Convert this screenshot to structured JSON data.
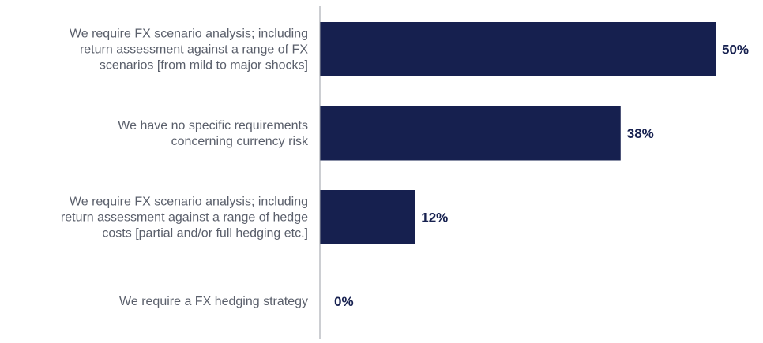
{
  "chart_data": {
    "type": "bar",
    "orientation": "horizontal",
    "categories": [
      "We require FX scenario analysis; including return assessment against a range of FX scenarios [from mild to major shocks]",
      "We have no specific requirements concerning currency risk",
      "We require FX scenario analysis; including return assessment against a range of hedge costs [partial and/or full hedging etc.]",
      "We require a FX hedging strategy"
    ],
    "category_lines": [
      [
        "We require FX scenario analysis; including",
        "return assessment against a range of FX",
        "scenarios [from mild to major shocks]"
      ],
      [
        "We have no specific requirements",
        "concerning currency risk"
      ],
      [
        "We require FX scenario analysis; including",
        "return assessment against a range of hedge",
        "costs [partial and/or full hedging etc.]"
      ],
      [
        "We require a FX hedging strategy"
      ]
    ],
    "values": [
      50,
      38,
      12,
      0
    ],
    "value_labels": [
      "50%",
      "38%",
      "12%",
      "0%"
    ],
    "unit": "%",
    "xlim": [
      0,
      50
    ],
    "title": "",
    "xlabel": "",
    "ylabel": "",
    "grid": false,
    "legend": "none",
    "colors": {
      "bar": "#16204f",
      "value_label": "#16204f",
      "category_label": "#5a5f6b",
      "axis": "#9a9ea6"
    }
  }
}
